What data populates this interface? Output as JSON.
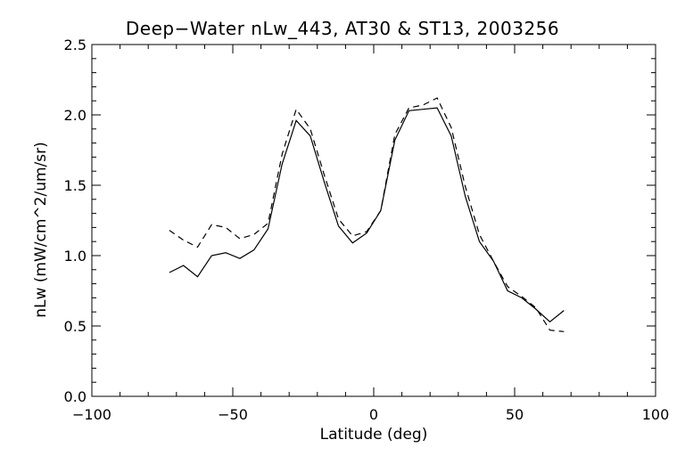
{
  "chart_data": {
    "type": "line",
    "title": "Deep−Water nLw_443, AT30 & ST13, 2003256",
    "xlabel": "Latitude (deg)",
    "ylabel": "nLw (mW/cm^2/um/sr)",
    "xlim": [
      -100,
      100
    ],
    "ylim": [
      0.0,
      2.5
    ],
    "xticks": [
      -100,
      -50,
      0,
      50,
      100
    ],
    "xtick_labels": [
      "−100",
      "−50",
      "0",
      "50",
      "100"
    ],
    "yticks": [
      0.0,
      0.5,
      1.0,
      1.5,
      2.0,
      2.5
    ],
    "ytick_labels": [
      "0.0",
      "0.5",
      "1.0",
      "1.5",
      "2.0",
      "2.5"
    ],
    "grid": false,
    "series": [
      {
        "style": "solid",
        "x": [
          -72.5,
          -67.5,
          -62.5,
          -57.5,
          -52.5,
          -47.5,
          -42.5,
          -37.5,
          -32.5,
          -27.5,
          -22.5,
          -17.5,
          -12.5,
          -7.5,
          -2.5,
          2.5,
          7.5,
          12.5,
          17.5,
          22.5,
          27.5,
          32.5,
          37.5,
          42.5,
          47.5,
          52.5,
          57.5,
          62.5,
          67.5
        ],
        "y": [
          0.88,
          0.93,
          0.85,
          1.0,
          1.02,
          0.98,
          1.04,
          1.19,
          1.65,
          1.96,
          1.85,
          1.52,
          1.21,
          1.09,
          1.16,
          1.32,
          1.82,
          2.03,
          2.04,
          2.05,
          1.85,
          1.42,
          1.1,
          0.96,
          0.75,
          0.7,
          0.62,
          0.53,
          0.61
        ]
      },
      {
        "style": "dashed",
        "x": [
          -72.5,
          -67.5,
          -62.5,
          -57.5,
          -52.5,
          -47.5,
          -42.5,
          -37.5,
          -32.5,
          -27.5,
          -22.5,
          -17.5,
          -12.5,
          -7.5,
          -2.5,
          2.5,
          7.5,
          12.5,
          17.5,
          22.5,
          27.5,
          32.5,
          37.5,
          42.5,
          47.5,
          52.5,
          57.5,
          62.5,
          67.5
        ],
        "y": [
          1.18,
          1.11,
          1.06,
          1.22,
          1.2,
          1.12,
          1.15,
          1.23,
          1.72,
          2.04,
          1.9,
          1.57,
          1.26,
          1.14,
          1.17,
          1.32,
          1.86,
          2.05,
          2.07,
          2.12,
          1.91,
          1.49,
          1.15,
          0.96,
          0.78,
          0.71,
          0.63,
          0.47,
          0.46
        ]
      }
    ]
  }
}
